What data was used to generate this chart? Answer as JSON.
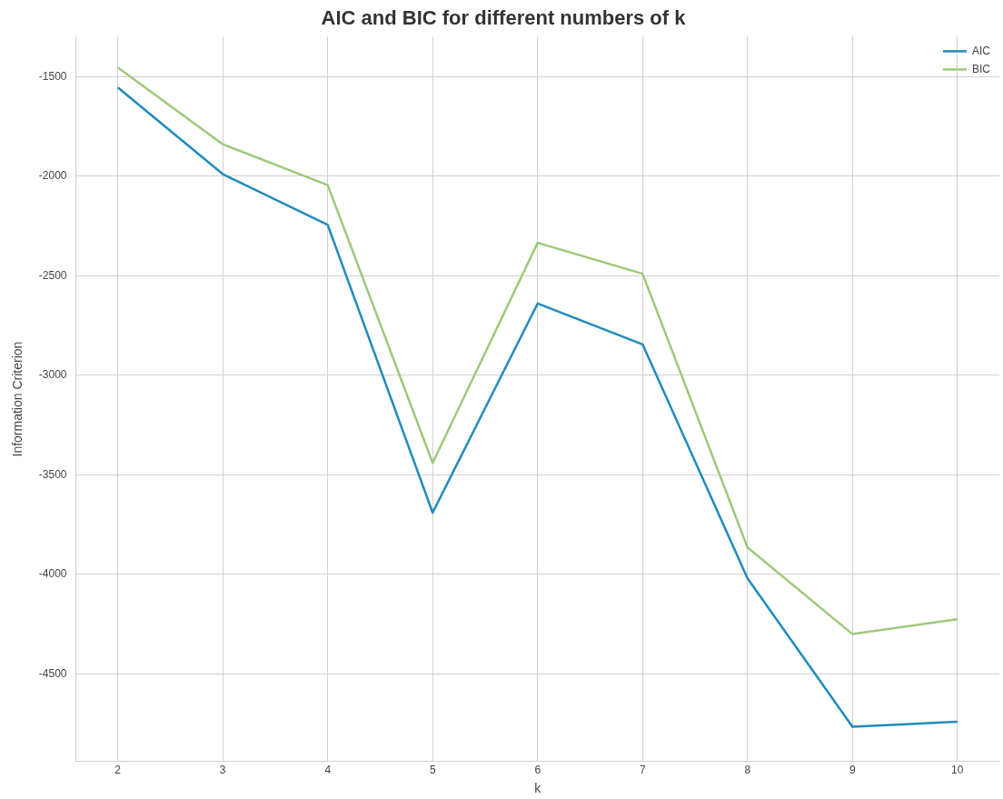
{
  "chart_data": {
    "type": "line",
    "title": "AIC and BIC for different numbers of k",
    "xlabel": "k",
    "ylabel": "Information Criterion",
    "x": [
      2,
      3,
      4,
      5,
      6,
      7,
      8,
      9,
      10
    ],
    "series": [
      {
        "name": "AIC",
        "color": "#1f8bbd",
        "values": [
          -1555,
          -1990,
          -2245,
          -3690,
          -2640,
          -2845,
          -4020,
          -4765,
          -4740
        ]
      },
      {
        "name": "BIC",
        "color": "#9dc97a",
        "values": [
          -1455,
          -1840,
          -2045,
          -3440,
          -2335,
          -2490,
          -3865,
          -4300,
          -4225
        ]
      }
    ],
    "xlim": [
      1.6,
      10.4
    ],
    "xticks": [
      2,
      3,
      4,
      5,
      6,
      7,
      8,
      9,
      10
    ],
    "ylim": [
      -4940,
      -1300
    ],
    "yticks": [
      -4500,
      -4000,
      -3500,
      -3000,
      -2500,
      -2000,
      -1500
    ],
    "grid": true,
    "legend": "top right",
    "marker": "none",
    "line_style": "solid"
  }
}
